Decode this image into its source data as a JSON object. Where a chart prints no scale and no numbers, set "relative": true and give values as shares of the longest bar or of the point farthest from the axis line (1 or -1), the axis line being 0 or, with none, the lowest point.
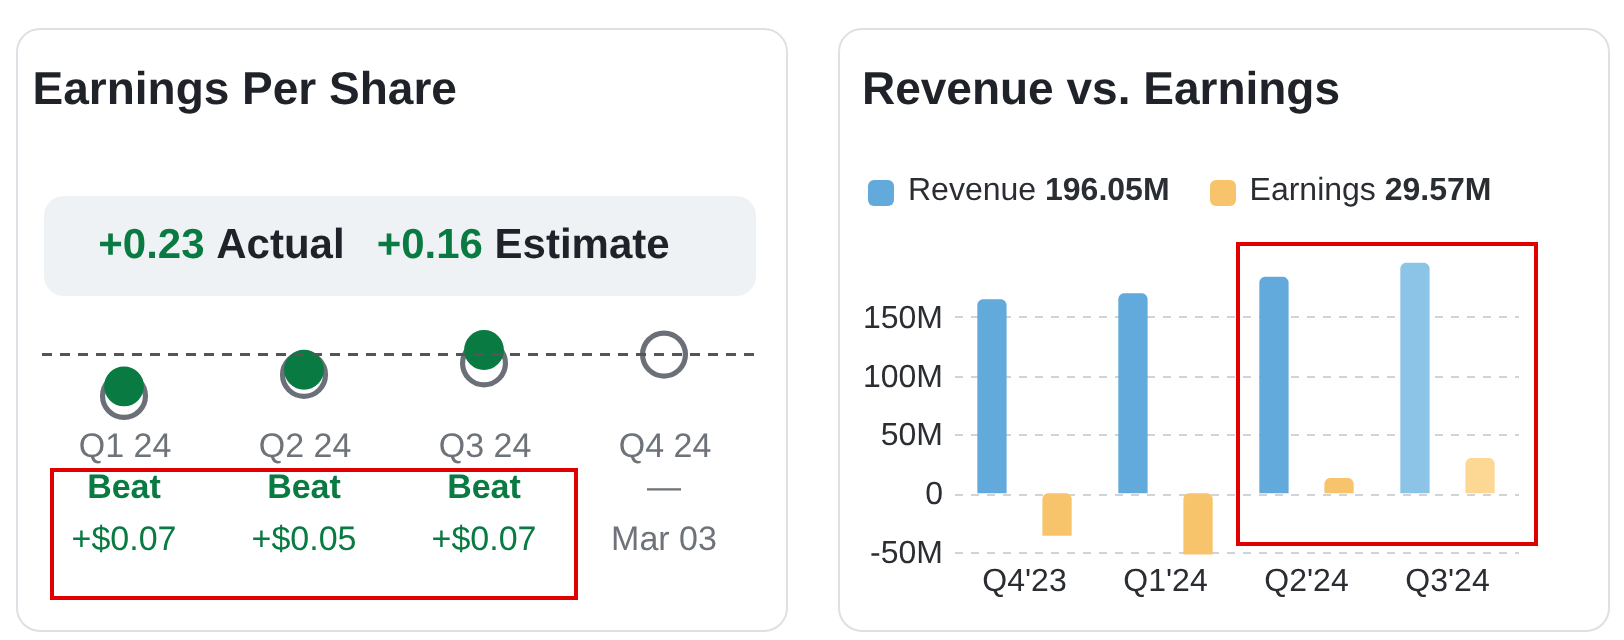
{
  "chart_data": [
    {
      "type": "scatter",
      "title": "Earnings Per Share",
      "relative": true,
      "categories": [
        "Q1 24",
        "Q2 24",
        "Q3 24",
        "Q4 24"
      ],
      "marker": "circle",
      "legend": "top",
      "series": [
        {
          "name": "Actual",
          "color": "#0a7a43",
          "values": [
            0.21,
            0.57,
            1.0,
            null
          ]
        },
        {
          "name": "Estimate",
          "color": "#6b7078",
          "values": [
            0,
            0.46,
            0.71,
            0.9
          ]
        }
      ],
      "ref_lines": [
        {
          "axis": "y",
          "value": 0.9,
          "line_style": "dashed",
          "color": "#555555"
        }
      ],
      "annotations": [
        "+0.23",
        "+0.16",
        "Beat",
        "+$0.07",
        "Beat",
        "+$0.05",
        "Beat",
        "+$0.07",
        "—",
        "Mar 03"
      ]
    },
    {
      "type": "bar",
      "title": "Revenue vs. Earnings",
      "categories": [
        "Q4'23",
        "Q1'24",
        "Q2'24",
        "Q3'24"
      ],
      "legend": "top left",
      "grid": "y",
      "ylim": [
        -55,
        200
      ],
      "yticks": [
        {
          "value": -50,
          "label": "-50M"
        },
        {
          "value": 0,
          "label": "0"
        },
        {
          "value": 50,
          "label": "50M"
        },
        {
          "value": 100,
          "label": "100M"
        },
        {
          "value": 150,
          "label": "150M"
        }
      ],
      "series": [
        {
          "name": "Revenue",
          "color": "#62aadb",
          "colors": [
            "#62aadb",
            "#62aadb",
            "#62aadb",
            "#8cc4e8"
          ],
          "values": [
            165,
            170,
            184,
            196
          ]
        },
        {
          "name": "Earnings",
          "color": "#f7c46c",
          "colors": [
            "#f7c46c",
            "#f7c46c",
            "#f7c46c",
            "#fcd894"
          ],
          "values": [
            -36,
            -52,
            13,
            30
          ]
        }
      ],
      "annotations": [
        "196.05M",
        "29.57M"
      ]
    }
  ]
}
